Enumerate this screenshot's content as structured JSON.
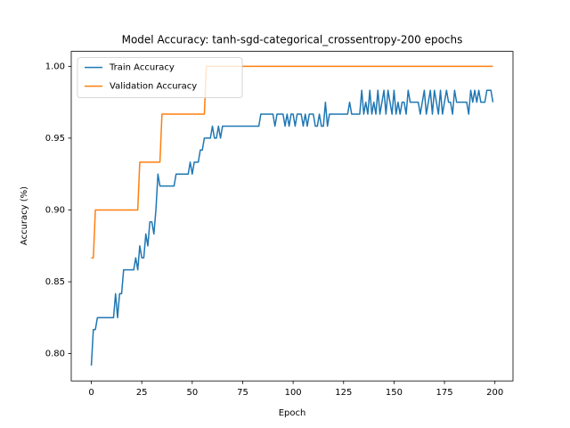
{
  "chart_data": {
    "type": "line",
    "title": "Model Accuracy: tanh-sgd-categorical_crossentropy-200 epochs",
    "xlabel": "Epoch",
    "ylabel": "Accuracy (%)",
    "legend": "upper left",
    "grid": false,
    "xlim": [
      -9.95,
      208.95
    ],
    "ylim": [
      0.781,
      1.0104
    ],
    "xticks": [
      0,
      25,
      50,
      75,
      100,
      125,
      150,
      175,
      200
    ],
    "yticks": [
      {
        "value": 0.8,
        "label": "0.80"
      },
      {
        "value": 0.85,
        "label": "0.85"
      },
      {
        "value": 0.9,
        "label": "0.90"
      },
      {
        "value": 0.95,
        "label": "0.95"
      },
      {
        "value": 1.0,
        "label": "1.00"
      }
    ],
    "x": [
      0,
      1,
      2,
      3,
      4,
      5,
      6,
      7,
      8,
      9,
      10,
      11,
      12,
      13,
      14,
      15,
      16,
      17,
      18,
      19,
      20,
      21,
      22,
      23,
      24,
      25,
      26,
      27,
      28,
      29,
      30,
      31,
      32,
      33,
      34,
      35,
      36,
      37,
      38,
      39,
      40,
      41,
      42,
      43,
      44,
      45,
      46,
      47,
      48,
      49,
      50,
      51,
      52,
      53,
      54,
      55,
      56,
      57,
      58,
      59,
      60,
      61,
      62,
      63,
      64,
      65,
      66,
      67,
      68,
      69,
      70,
      71,
      72,
      73,
      74,
      75,
      76,
      77,
      78,
      79,
      80,
      81,
      82,
      83,
      84,
      85,
      86,
      87,
      88,
      89,
      90,
      91,
      92,
      93,
      94,
      95,
      96,
      97,
      98,
      99,
      100,
      101,
      102,
      103,
      104,
      105,
      106,
      107,
      108,
      109,
      110,
      111,
      112,
      113,
      114,
      115,
      116,
      117,
      118,
      119,
      120,
      121,
      122,
      123,
      124,
      125,
      126,
      127,
      128,
      129,
      130,
      131,
      132,
      133,
      134,
      135,
      136,
      137,
      138,
      139,
      140,
      141,
      142,
      143,
      144,
      145,
      146,
      147,
      148,
      149,
      150,
      151,
      152,
      153,
      154,
      155,
      156,
      157,
      158,
      159,
      160,
      161,
      162,
      163,
      164,
      165,
      166,
      167,
      168,
      169,
      170,
      171,
      172,
      173,
      174,
      175,
      176,
      177,
      178,
      179,
      180,
      181,
      182,
      183,
      184,
      185,
      186,
      187,
      188,
      189,
      190,
      191,
      192,
      193,
      194,
      195,
      196,
      197,
      198,
      199
    ],
    "series": [
      {
        "name": "Train Accuracy",
        "color": "#1f77b4",
        "values": [
          0.7917,
          0.8167,
          0.8167,
          0.825,
          0.825,
          0.825,
          0.825,
          0.825,
          0.825,
          0.825,
          0.825,
          0.825,
          0.8417,
          0.825,
          0.8417,
          0.8417,
          0.8583,
          0.8583,
          0.8583,
          0.8583,
          0.8583,
          0.8583,
          0.8667,
          0.8583,
          0.875,
          0.8667,
          0.8667,
          0.8833,
          0.875,
          0.8917,
          0.8917,
          0.8833,
          0.9,
          0.925,
          0.9167,
          0.9167,
          0.9167,
          0.9167,
          0.9167,
          0.9167,
          0.9167,
          0.9167,
          0.925,
          0.925,
          0.925,
          0.925,
          0.925,
          0.925,
          0.925,
          0.9333,
          0.925,
          0.9333,
          0.9333,
          0.9333,
          0.9417,
          0.9417,
          0.95,
          0.95,
          0.95,
          0.95,
          0.9583,
          0.95,
          0.95,
          0.9583,
          0.95,
          0.9583,
          0.9583,
          0.9583,
          0.9583,
          0.9583,
          0.9583,
          0.9583,
          0.9583,
          0.9583,
          0.9583,
          0.9583,
          0.9583,
          0.9583,
          0.9583,
          0.9583,
          0.9583,
          0.9583,
          0.9583,
          0.9583,
          0.9667,
          0.9667,
          0.9667,
          0.9667,
          0.9667,
          0.9667,
          0.9667,
          0.9583,
          0.9667,
          0.9667,
          0.9667,
          0.9667,
          0.9583,
          0.9667,
          0.9583,
          0.9667,
          0.9667,
          0.9583,
          0.9667,
          0.9667,
          0.9667,
          0.9583,
          0.9667,
          0.9583,
          0.9667,
          0.9667,
          0.9667,
          0.9583,
          0.9583,
          0.9667,
          0.9583,
          0.9583,
          0.975,
          0.9583,
          0.9667,
          0.9667,
          0.9667,
          0.9667,
          0.9667,
          0.9667,
          0.9667,
          0.9667,
          0.9667,
          0.9667,
          0.975,
          0.9667,
          0.9667,
          0.9667,
          0.9667,
          0.9667,
          0.9833,
          0.9667,
          0.975,
          0.9667,
          0.9833,
          0.9667,
          0.975,
          0.9667,
          0.9833,
          0.9667,
          0.975,
          0.9833,
          0.9667,
          0.9833,
          0.975,
          0.9667,
          0.9833,
          0.9667,
          0.975,
          0.9667,
          0.975,
          0.975,
          0.9667,
          0.9833,
          0.975,
          0.975,
          0.975,
          0.975,
          0.975,
          0.9667,
          0.975,
          0.9833,
          0.9667,
          0.975,
          0.9833,
          0.9667,
          0.9833,
          0.975,
          0.9667,
          0.9833,
          0.9667,
          0.975,
          0.9833,
          0.975,
          0.975,
          0.9667,
          0.9833,
          0.975,
          0.975,
          0.975,
          0.975,
          0.975,
          0.975,
          0.9667,
          0.9833,
          0.975,
          0.9833,
          0.975,
          0.9833,
          0.975,
          0.975,
          0.975,
          0.9833,
          0.9833,
          0.9833,
          0.975
        ]
      },
      {
        "name": "Validation Accuracy",
        "color": "#ff7f0e",
        "values": [
          0.8667,
          0.8667,
          0.9,
          0.9,
          0.9,
          0.9,
          0.9,
          0.9,
          0.9,
          0.9,
          0.9,
          0.9,
          0.9,
          0.9,
          0.9,
          0.9,
          0.9,
          0.9,
          0.9,
          0.9,
          0.9,
          0.9,
          0.9,
          0.9,
          0.9333,
          0.9333,
          0.9333,
          0.9333,
          0.9333,
          0.9333,
          0.9333,
          0.9333,
          0.9333,
          0.9333,
          0.9333,
          0.9667,
          0.9667,
          0.9667,
          0.9667,
          0.9667,
          0.9667,
          0.9667,
          0.9667,
          0.9667,
          0.9667,
          0.9667,
          0.9667,
          0.9667,
          0.9667,
          0.9667,
          0.9667,
          0.9667,
          0.9667,
          0.9667,
          0.9667,
          0.9667,
          0.9667,
          1.0,
          1.0,
          1.0,
          1.0,
          1.0,
          1.0,
          1.0,
          1.0,
          1.0,
          1.0,
          1.0,
          1.0,
          1.0,
          1.0,
          1.0,
          1.0,
          1.0,
          1.0,
          1.0,
          1.0,
          1.0,
          1.0,
          1.0,
          1.0,
          1.0,
          1.0,
          1.0,
          1.0,
          1.0,
          1.0,
          1.0,
          1.0,
          1.0,
          1.0,
          1.0,
          1.0,
          1.0,
          1.0,
          1.0,
          1.0,
          1.0,
          1.0,
          1.0,
          1.0,
          1.0,
          1.0,
          1.0,
          1.0,
          1.0,
          1.0,
          1.0,
          1.0,
          1.0,
          1.0,
          1.0,
          1.0,
          1.0,
          1.0,
          1.0,
          1.0,
          1.0,
          1.0,
          1.0,
          1.0,
          1.0,
          1.0,
          1.0,
          1.0,
          1.0,
          1.0,
          1.0,
          1.0,
          1.0,
          1.0,
          1.0,
          1.0,
          1.0,
          1.0,
          1.0,
          1.0,
          1.0,
          1.0,
          1.0,
          1.0,
          1.0,
          1.0,
          1.0,
          1.0,
          1.0,
          1.0,
          1.0,
          1.0,
          1.0,
          1.0,
          1.0,
          1.0,
          1.0,
          1.0,
          1.0,
          1.0,
          1.0,
          1.0,
          1.0,
          1.0,
          1.0,
          1.0,
          1.0,
          1.0,
          1.0,
          1.0,
          1.0,
          1.0,
          1.0,
          1.0,
          1.0,
          1.0,
          1.0,
          1.0,
          1.0,
          1.0,
          1.0,
          1.0,
          1.0,
          1.0,
          1.0,
          1.0,
          1.0,
          1.0,
          1.0,
          1.0,
          1.0,
          1.0,
          1.0,
          1.0,
          1.0,
          1.0,
          1.0,
          1.0,
          1.0,
          1.0,
          1.0,
          1.0,
          1.0
        ]
      }
    ]
  }
}
